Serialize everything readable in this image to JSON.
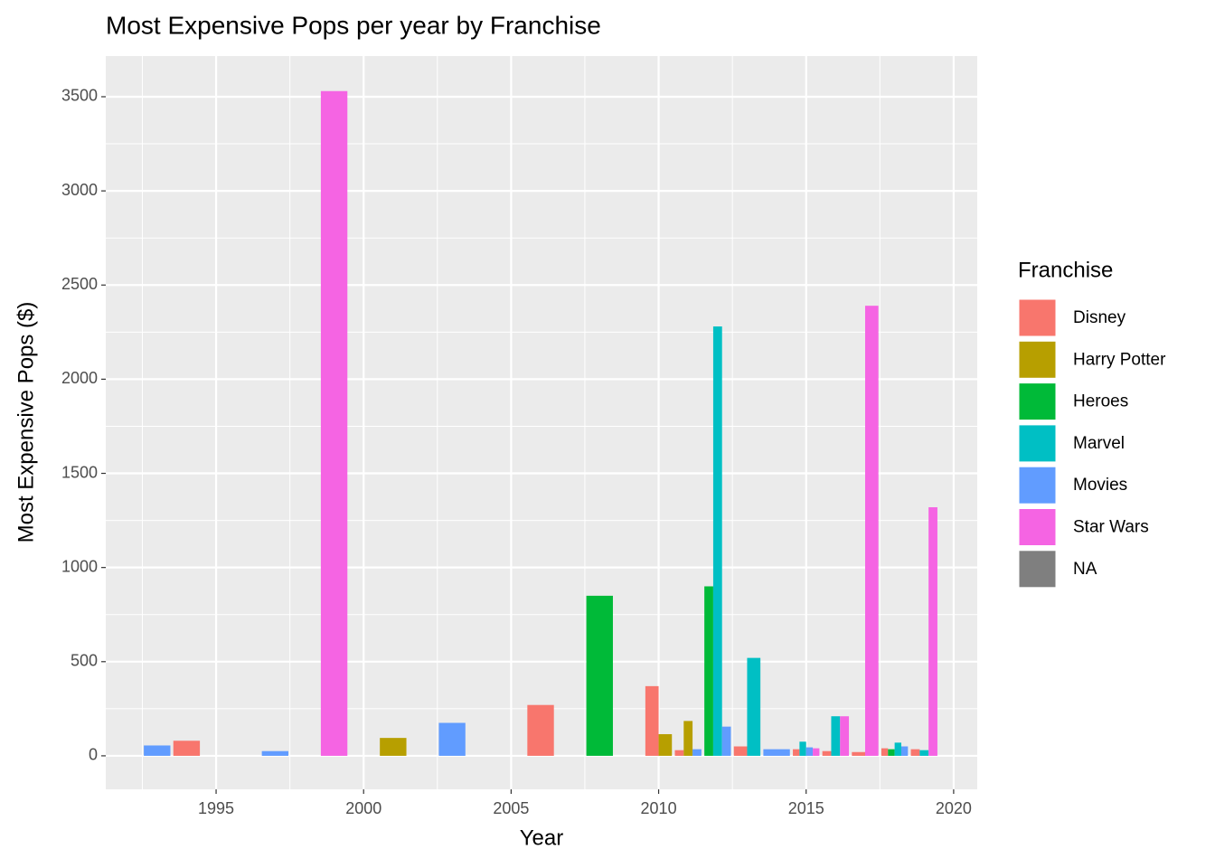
{
  "chart_data": {
    "type": "bar",
    "title": "Most Expensive Pops per year by Franchise",
    "x_label": "Year",
    "y_label": "Most Expensive Pops ($)",
    "legend_title": "Franchise",
    "x": [
      1993,
      1994,
      1997,
      1999,
      2001,
      2003,
      2006,
      2008,
      2010,
      2011,
      2012,
      2013,
      2014,
      2015,
      2016,
      2017,
      2018,
      2019
    ],
    "series": [
      {
        "name": "Disney",
        "color": "#f8766d",
        "values": [
          null,
          80,
          null,
          null,
          null,
          null,
          270,
          null,
          370,
          30,
          null,
          50,
          null,
          35,
          25,
          20,
          40,
          35
        ]
      },
      {
        "name": "Harry Potter",
        "color": "#b79f00",
        "values": [
          null,
          null,
          null,
          null,
          95,
          null,
          null,
          null,
          115,
          185,
          null,
          null,
          null,
          null,
          null,
          null,
          null,
          null
        ]
      },
      {
        "name": "Heroes",
        "color": "#00ba38",
        "values": [
          null,
          null,
          null,
          null,
          null,
          null,
          null,
          850,
          null,
          null,
          900,
          null,
          null,
          null,
          null,
          null,
          35,
          null
        ]
      },
      {
        "name": "Marvel",
        "color": "#00bfc4",
        "values": [
          null,
          null,
          null,
          null,
          null,
          null,
          null,
          null,
          null,
          null,
          2280,
          520,
          null,
          75,
          210,
          null,
          70,
          30
        ]
      },
      {
        "name": "Movies",
        "color": "#619cff",
        "values": [
          55,
          null,
          25,
          null,
          null,
          175,
          null,
          null,
          null,
          35,
          155,
          null,
          35,
          45,
          null,
          null,
          50,
          null
        ]
      },
      {
        "name": "Star Wars",
        "color": "#f564e3",
        "values": [
          null,
          null,
          null,
          3530,
          null,
          null,
          null,
          null,
          null,
          null,
          null,
          null,
          null,
          40,
          210,
          2390,
          null,
          1320
        ]
      },
      {
        "name": "NA",
        "color": "#7f7f7f",
        "values": [
          null,
          null,
          null,
          null,
          null,
          null,
          null,
          null,
          null,
          null,
          null,
          null,
          null,
          null,
          null,
          null,
          null,
          null
        ]
      }
    ],
    "xlim": [
      1991.26,
      2020.8
    ],
    "xticks": [
      1995,
      2000,
      2005,
      2010,
      2015,
      2020
    ],
    "ylim": [
      -178,
      3716
    ],
    "yticks": [
      0,
      500,
      1000,
      1500,
      2000,
      2500,
      3000,
      3500
    ],
    "grid": true,
    "legend": "right"
  }
}
